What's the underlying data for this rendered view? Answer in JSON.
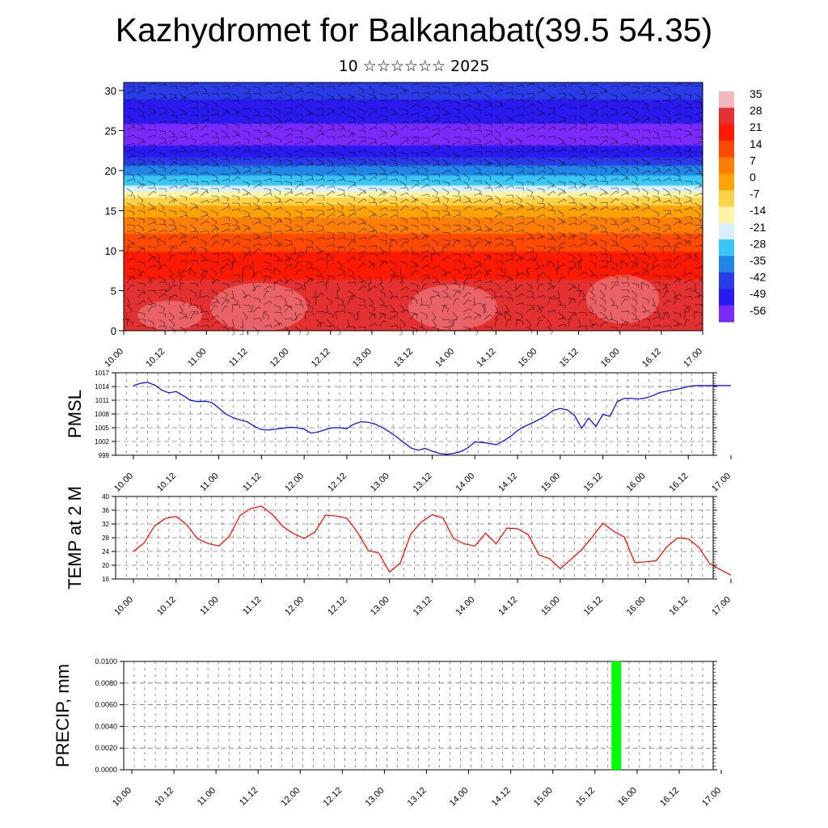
{
  "title": "Kazhydromet for Balkanabat(39.5 54.35)",
  "subtitle": "10 ☆☆☆☆☆☆ 2025",
  "time_ticks": [
    "10.00",
    "10.12",
    "11.00",
    "11.12",
    "12.00",
    "12.12",
    "13.00",
    "13.12",
    "14.00",
    "14.12",
    "15.00",
    "15.12",
    "16.00",
    "16.12",
    "17.00"
  ],
  "chart_data": [
    {
      "type": "heatmap",
      "title": "",
      "xlabel": "",
      "ylabel": "",
      "x_ticks": [
        "10.00",
        "10.12",
        "11.00",
        "11.12",
        "12.00",
        "12.12",
        "13.00",
        "13.12",
        "14.00",
        "14.12",
        "15.00",
        "15.12",
        "16.00",
        "16.12",
        "17.00"
      ],
      "y_ticks": [
        0,
        5,
        10,
        15,
        20,
        25,
        30
      ],
      "ylim": [
        0,
        31
      ],
      "colorbar_labels": [
        "35",
        "28",
        "21",
        "14",
        "7",
        "0",
        "-7",
        "-14",
        "-21",
        "-28",
        "-35",
        "-42",
        "-49",
        "-56"
      ],
      "colorbar_colors": [
        "#f2b9bd",
        "#e33030",
        "#ff1a00",
        "#ff4a00",
        "#ff7d00",
        "#ffa300",
        "#ffd24a",
        "#fff3a6",
        "#d6f0ff",
        "#39c6f5",
        "#2184e6",
        "#2a3ce6",
        "#2a1af0",
        "#7a2aff"
      ],
      "profile": [
        {
          "h": 0,
          "t": 30
        },
        {
          "h": 3,
          "t": 28
        },
        {
          "h": 6,
          "t": 25
        },
        {
          "h": 9,
          "t": 21
        },
        {
          "h": 11,
          "t": 14
        },
        {
          "h": 13,
          "t": 8
        },
        {
          "h": 15,
          "t": 0
        },
        {
          "h": 16.5,
          "t": -10
        },
        {
          "h": 18,
          "t": -24
        },
        {
          "h": 20,
          "t": -35
        },
        {
          "h": 22,
          "t": -48
        },
        {
          "h": 24,
          "t": -56
        },
        {
          "h": 26,
          "t": -52
        },
        {
          "h": 28,
          "t": -46
        },
        {
          "h": 31,
          "t": -44
        }
      ]
    },
    {
      "type": "line",
      "ylabel": "PMSL",
      "y_ticks": [
        999,
        1002,
        1005,
        1008,
        1011,
        1014,
        1017
      ],
      "ylim": [
        999,
        1017
      ],
      "x_ticks": [
        "10.00",
        "10.12",
        "11.00",
        "11.12",
        "12.00",
        "12.12",
        "13.00",
        "13.12",
        "14.00",
        "14.12",
        "15.00",
        "15.12",
        "16.00",
        "16.12",
        "17.00"
      ],
      "series": [
        {
          "color": "#0000ff",
          "x": [
            0,
            0.083,
            0.167,
            0.25,
            0.333,
            0.417,
            0.5,
            0.583,
            0.667,
            0.75,
            0.833,
            0.917,
            1,
            1.083,
            1.167,
            1.25,
            1.333,
            1.417,
            1.5,
            1.583,
            1.667,
            1.75,
            1.833,
            1.917,
            2,
            2.083,
            2.167,
            2.25,
            2.333,
            2.417,
            2.5,
            2.583,
            2.667,
            2.75,
            2.833,
            2.917,
            3,
            3.083,
            3.167,
            3.25,
            3.333,
            3.417,
            3.5,
            3.583,
            3.667,
            3.75,
            3.833,
            3.917,
            4,
            4.083,
            4.167,
            4.25,
            4.333,
            4.417,
            4.5,
            4.583,
            4.667,
            4.75,
            4.833,
            4.917,
            5,
            5.083,
            5.167,
            5.25,
            5.333,
            5.417,
            5.5,
            5.583,
            5.667,
            5.75,
            5.833,
            5.917,
            6,
            6.083,
            6.167,
            6.25,
            6.333,
            6.417,
            6.5,
            6.583,
            6.667,
            6.75,
            6.833,
            6.917,
            7
          ],
          "values": [
            1014.2,
            1014.7,
            1014.9,
            1014.3,
            1013.2,
            1012.6,
            1012.9,
            1012,
            1011,
            1010.7,
            1010.8,
            1010.5,
            1009.3,
            1008,
            1007.2,
            1006.7,
            1006.3,
            1005.3,
            1004.6,
            1004.5,
            1004.7,
            1004.9,
            1005.1,
            1005,
            1004.7,
            1003.8,
            1004.1,
            1004.6,
            1005,
            1005,
            1004.8,
            1005.8,
            1006.3,
            1006.2,
            1005.8,
            1005,
            1004.1,
            1003,
            1001.8,
            1000.6,
            1000.1,
            1000.5,
            999.9,
            999.4,
            999.2,
            999.4,
            999.8,
            1000.6,
            1001.9,
            1001.8,
            1001.6,
            1001.3,
            1002.1,
            1003.1,
            1004.4,
            1005.3,
            1006,
            1006.8,
            1007.6,
            1008.8,
            1009.2,
            1008.9,
            1007.7,
            1004.9,
            1007.1,
            1005.3,
            1007.9,
            1007.5,
            1010.7,
            1011.4,
            1011.4,
            1011.3,
            1011.5,
            1012,
            1012.7,
            1013,
            1013.3,
            1013.6,
            1014,
            1014.2,
            1014.2,
            1014.2,
            1014.2,
            1014.2,
            1014.2
          ]
        }
      ]
    },
    {
      "type": "line",
      "ylabel": "TEMP at 2 M",
      "y_ticks": [
        16,
        20,
        24,
        28,
        32,
        36,
        40
      ],
      "ylim": [
        16,
        40
      ],
      "x_ticks": [
        "10.00",
        "10.12",
        "11.00",
        "11.12",
        "12.00",
        "12.12",
        "13.00",
        "13.12",
        "14.00",
        "14.12",
        "15.00",
        "15.12",
        "16.00",
        "16.12",
        "17.00"
      ],
      "series": [
        {
          "color": "#ff0000",
          "x": [
            0,
            0.125,
            0.25,
            0.375,
            0.5,
            0.625,
            0.75,
            0.875,
            1,
            1.125,
            1.25,
            1.375,
            1.5,
            1.625,
            1.75,
            1.875,
            2,
            2.125,
            2.25,
            2.375,
            2.5,
            2.625,
            2.75,
            2.875,
            3,
            3.125,
            3.25,
            3.375,
            3.5,
            3.625,
            3.75,
            3.875,
            4,
            4.125,
            4.25,
            4.375,
            4.5,
            4.625,
            4.75,
            4.875,
            5,
            5.125,
            5.25,
            5.375,
            5.5,
            5.625,
            5.75,
            5.875,
            6,
            6.125,
            6.25,
            6.375,
            6.5,
            6.625,
            6.75,
            6.875,
            7
          ],
          "values": [
            24,
            26.5,
            31.5,
            33.6,
            34.2,
            31.8,
            27.7,
            26.3,
            25.6,
            28.5,
            34.5,
            36.5,
            37.2,
            34.8,
            31.3,
            29.2,
            27.8,
            29.6,
            34.6,
            34.3,
            33.7,
            29.6,
            24.3,
            23.5,
            18,
            20.6,
            29.1,
            32.6,
            34.7,
            33.8,
            27.8,
            26.2,
            25.6,
            29.3,
            26.2,
            30.8,
            30.6,
            28.9,
            23,
            21.9,
            19,
            21.7,
            24.5,
            28.2,
            32.2,
            29.9,
            28.2,
            20.7,
            21,
            21.3,
            25.4,
            27.9,
            27.7,
            25.2,
            20.5,
            18.7,
            17.1
          ]
        }
      ]
    },
    {
      "type": "bar",
      "ylabel": "PRECIP, mm",
      "y_ticks": [
        "0.0000",
        "0.0020",
        "0.0040",
        "0.0060",
        "0.0080",
        "0.0100"
      ],
      "ylim": [
        0,
        0.01
      ],
      "x_ticks": [
        "10.00",
        "10.12",
        "11.00",
        "11.12",
        "12.00",
        "12.12",
        "13.00",
        "13.12",
        "14.00",
        "14.12",
        "15.00",
        "15.12",
        "16.00",
        "16.12",
        "17.00"
      ],
      "series": [
        {
          "color": "#00ff00",
          "x": [
            5.85
          ],
          "values": [
            0.01
          ]
        }
      ]
    }
  ]
}
